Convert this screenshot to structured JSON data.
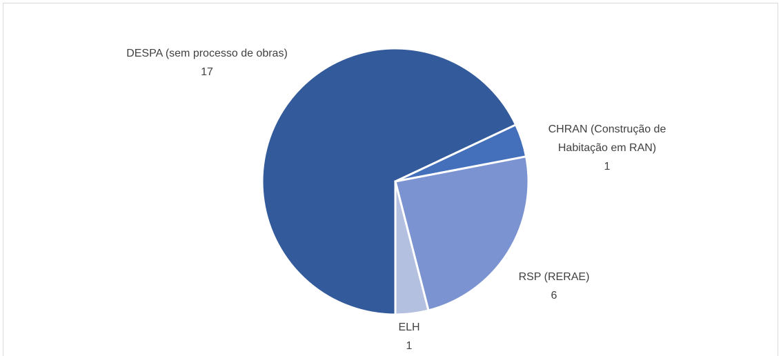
{
  "chart_data": {
    "type": "pie",
    "categories": [
      "DESPA (sem processo de obras)",
      "CHRAN (Construção de Habitação em RAN)",
      "RSP (RERAE)",
      "ELH"
    ],
    "values": [
      17,
      1,
      6,
      1
    ],
    "colors": [
      "#335a9a",
      "#4470bb",
      "#7b93d0",
      "#b4c0e0"
    ]
  }
}
